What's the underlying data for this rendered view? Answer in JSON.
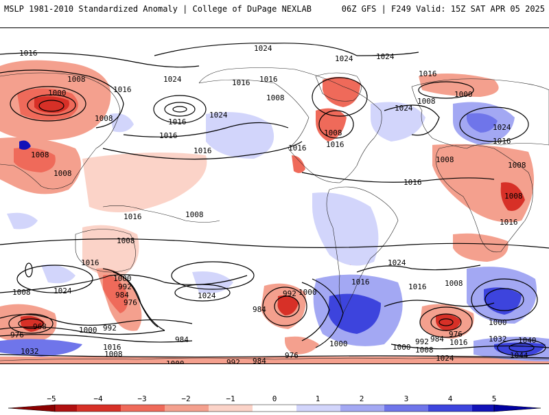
{
  "header": {
    "title_left": "MSLP 1981-2010 Standardized Anomaly | College of DuPage NEXLAB",
    "title_right": "06Z GFS | F249 Valid: 15Z SAT APR 05 2025"
  },
  "colors": {
    "neg5": "#b01010",
    "neg4": "#d73027",
    "neg3": "#ef6a5a",
    "neg2": "#f4a08e",
    "neg1": "#fbd3c8",
    "zero": "#ffffff",
    "pos1": "#d2d5fb",
    "pos2": "#a3a8f3",
    "pos3": "#6f75ea",
    "pos4": "#3d44dd",
    "pos5": "#1212b8"
  },
  "colorbar": {
    "ticks": [
      "−5",
      "−4",
      "−3",
      "−2",
      "−1",
      "0",
      "1",
      "2",
      "3",
      "4",
      "5"
    ]
  },
  "isobar_labels": [
    {
      "text": "1016"
    },
    {
      "text": "1024"
    },
    {
      "text": "1024"
    },
    {
      "text": "1024"
    },
    {
      "text": "1008"
    },
    {
      "text": "1016"
    },
    {
      "text": "1000"
    },
    {
      "text": "1024"
    },
    {
      "text": "1016"
    },
    {
      "text": "1016"
    },
    {
      "text": "1008"
    },
    {
      "text": "1016"
    },
    {
      "text": "1024"
    },
    {
      "text": "1016"
    },
    {
      "text": "1008"
    },
    {
      "text": "1000"
    },
    {
      "text": "1008"
    },
    {
      "text": "1024"
    },
    {
      "text": "1016"
    },
    {
      "text": "1008"
    },
    {
      "text": "1016"
    },
    {
      "text": "1008"
    },
    {
      "text": "1008"
    },
    {
      "text": "1016"
    },
    {
      "text": "1008"
    },
    {
      "text": "1016"
    },
    {
      "text": "1008"
    },
    {
      "text": "1016"
    },
    {
      "text": "1016"
    },
    {
      "text": "1008"
    },
    {
      "text": "1016"
    },
    {
      "text": "1008"
    },
    {
      "text": "1016"
    },
    {
      "text": "1024"
    },
    {
      "text": "1000"
    },
    {
      "text": "992"
    },
    {
      "text": "984"
    },
    {
      "text": "976"
    },
    {
      "text": "1016"
    },
    {
      "text": "1008"
    },
    {
      "text": "1024"
    },
    {
      "text": "1008"
    },
    {
      "text": "1000"
    },
    {
      "text": "992"
    },
    {
      "text": "984"
    },
    {
      "text": "1016"
    },
    {
      "text": "1024"
    },
    {
      "text": "1016"
    },
    {
      "text": "1008"
    },
    {
      "text": "1024"
    },
    {
      "text": "968"
    },
    {
      "text": "976"
    },
    {
      "text": "1000"
    },
    {
      "text": "992"
    },
    {
      "text": "1032"
    },
    {
      "text": "1016"
    },
    {
      "text": "1008"
    },
    {
      "text": "984"
    },
    {
      "text": "1000"
    },
    {
      "text": "992"
    },
    {
      "text": "984"
    },
    {
      "text": "976"
    },
    {
      "text": "1000"
    },
    {
      "text": "1000"
    },
    {
      "text": "992"
    },
    {
      "text": "984"
    },
    {
      "text": "976"
    },
    {
      "text": "1016"
    },
    {
      "text": "1008"
    },
    {
      "text": "1024"
    },
    {
      "text": "1032"
    },
    {
      "text": "1040"
    },
    {
      "text": "1000"
    },
    {
      "text": "1044"
    }
  ]
}
